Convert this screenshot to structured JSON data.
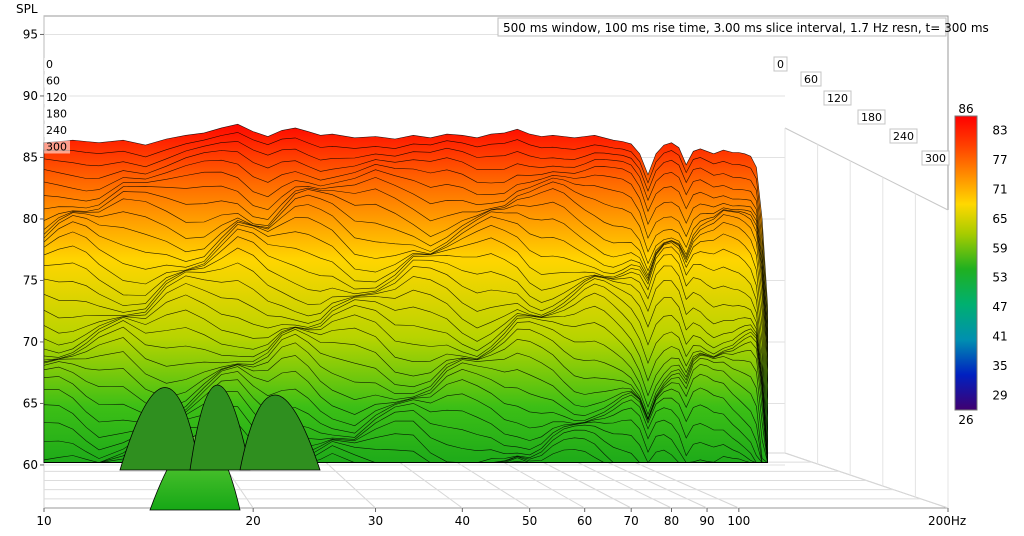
{
  "chart_data": {
    "type": "waterfall-3d",
    "title": "500 ms window, 100 ms rise time, 3.00 ms slice interval, 1.7 Hz resn, t= 300 ms",
    "ylabel": "SPL",
    "xlabel_unit": "Hz",
    "x_scale": "log",
    "xlim": [
      10,
      200
    ],
    "ylim": [
      56.5,
      96.5
    ],
    "x_ticks": [
      10,
      20,
      30,
      40,
      50,
      60,
      70,
      80,
      90,
      100,
      200
    ],
    "x_tick_labels": [
      "10",
      "20",
      "30",
      "40",
      "50",
      "60",
      "70",
      "80",
      "90",
      "100",
      "200Hz"
    ],
    "y_ticks": [
      60,
      65,
      70,
      75,
      80,
      85,
      90,
      95
    ],
    "time_ticks_ms": [
      0,
      60,
      120,
      180,
      240,
      300
    ],
    "colorbar": {
      "min": 26,
      "max": 86,
      "tick_labels": [
        "86",
        "83",
        "77",
        "71",
        "65",
        "59",
        "53",
        "47",
        "41",
        "35",
        "29",
        "26"
      ]
    },
    "front_slice_ms": 0,
    "front_slice_response": {
      "freq_hz": [
        10,
        10.5,
        11,
        11.5,
        12,
        13,
        14,
        15,
        16,
        17,
        18,
        19,
        20,
        21,
        22,
        23,
        24,
        25,
        26,
        28,
        30,
        32,
        34,
        36,
        38,
        40,
        42,
        44,
        46,
        48,
        50,
        52,
        54,
        56,
        58,
        60,
        62,
        64,
        66,
        68,
        70,
        72,
        74,
        76,
        78,
        80,
        82,
        84,
        86,
        88,
        90,
        92,
        95,
        98,
        100,
        102,
        104,
        106,
        108,
        110
      ],
      "spl_db": [
        86.2,
        86.3,
        86.4,
        86.3,
        86.2,
        86.4,
        86.0,
        86.5,
        86.8,
        87.0,
        87.4,
        87.7,
        87.1,
        86.7,
        87.2,
        87.4,
        87.1,
        86.8,
        86.9,
        86.6,
        86.7,
        86.5,
        86.8,
        86.6,
        86.9,
        86.8,
        86.6,
        86.9,
        87.0,
        87.3,
        86.9,
        86.7,
        86.8,
        86.7,
        86.6,
        86.7,
        86.8,
        86.6,
        86.4,
        86.3,
        86.1,
        85.3,
        83.6,
        85.3,
        86.0,
        86.2,
        85.8,
        84.4,
        85.5,
        85.7,
        85.5,
        85.3,
        85.6,
        85.4,
        85.4,
        85.3,
        85.1,
        84.2,
        80.0,
        73.0
      ]
    }
  }
}
